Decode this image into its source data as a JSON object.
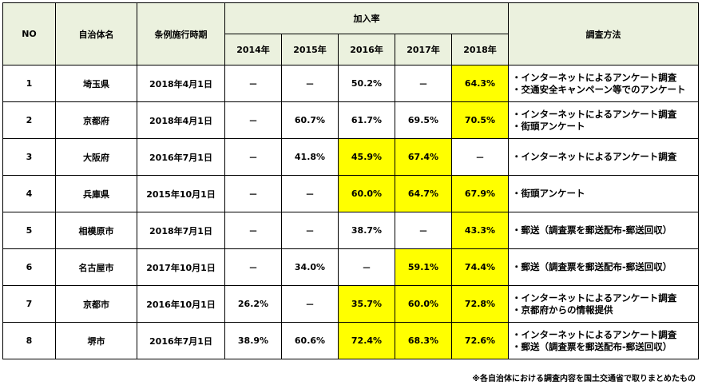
{
  "headers": {
    "no": "NO",
    "municipality": "自治体名",
    "enforcement": "条例施行時期",
    "rate_group": "加入率",
    "years": [
      "2014年",
      "2015年",
      "2016年",
      "2017年",
      "2018年"
    ],
    "method": "調査方法"
  },
  "rows": [
    {
      "no": "1",
      "name": "埼玉県",
      "date": "2018年4月1日",
      "rates": [
        "－",
        "－",
        "50.2%",
        "－",
        "64.3%"
      ],
      "highlight": [
        false,
        false,
        false,
        false,
        true
      ],
      "methods": [
        "・インターネットによるアンケート調査",
        "・交通安全キャンペーン等でのアンケート"
      ]
    },
    {
      "no": "2",
      "name": "京都府",
      "date": "2018年4月1日",
      "rates": [
        "－",
        "60.7%",
        "61.7%",
        "69.5%",
        "70.5%"
      ],
      "highlight": [
        false,
        false,
        false,
        false,
        true
      ],
      "methods": [
        "・インターネットによるアンケート調査",
        "・街頭アンケート"
      ]
    },
    {
      "no": "3",
      "name": "大阪府",
      "date": "2016年7月1日",
      "rates": [
        "－",
        "41.8%",
        "45.9%",
        "67.4%",
        "－"
      ],
      "highlight": [
        false,
        false,
        true,
        true,
        false
      ],
      "methods": [
        "・インターネットによるアンケート調査"
      ]
    },
    {
      "no": "4",
      "name": "兵庫県",
      "date": "2015年10月1日",
      "rates": [
        "－",
        "－",
        "60.0%",
        "64.7%",
        "67.9%"
      ],
      "highlight": [
        false,
        false,
        true,
        true,
        true
      ],
      "methods": [
        "・街頭アンケート"
      ]
    },
    {
      "no": "5",
      "name": "相模原市",
      "date": "2018年7月1日",
      "rates": [
        "－",
        "－",
        "38.7%",
        "－",
        "43.3%"
      ],
      "highlight": [
        false,
        false,
        false,
        false,
        true
      ],
      "methods": [
        "・郵送（調査票を郵送配布-郵送回収）"
      ]
    },
    {
      "no": "6",
      "name": "名古屋市",
      "date": "2017年10月1日",
      "rates": [
        "－",
        "34.0%",
        "－",
        "59.1%",
        "74.4%"
      ],
      "highlight": [
        false,
        false,
        false,
        true,
        true
      ],
      "methods": [
        "・郵送（調査票を郵送配布-郵送回収）"
      ]
    },
    {
      "no": "7",
      "name": "京都市",
      "date": "2016年10月1日",
      "rates": [
        "26.2%",
        "－",
        "35.7%",
        "60.0%",
        "72.8%"
      ],
      "highlight": [
        false,
        false,
        true,
        true,
        true
      ],
      "methods": [
        "・インターネットによるアンケート調査",
        "・京都府からの情報提供"
      ]
    },
    {
      "no": "8",
      "name": "堺市",
      "date": "2016年7月1日",
      "rates": [
        "38.9%",
        "60.6%",
        "72.4%",
        "68.3%",
        "72.6%"
      ],
      "highlight": [
        false,
        false,
        true,
        true,
        true
      ],
      "methods": [
        "・インターネットによるアンケート調査",
        "・郵送（調査票を郵送配布-郵送回収）"
      ]
    }
  ],
  "highlight_color": "#ffff00",
  "header_bg": "#ebf1de",
  "note": "※各自治体における調査内容を国土交通省で取りまとめたもの"
}
